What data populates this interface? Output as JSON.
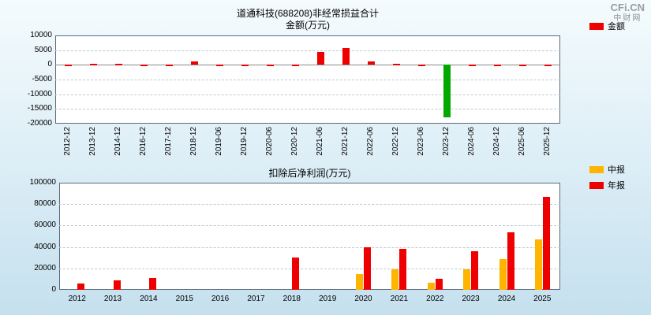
{
  "watermark": {
    "logo": "CFi.CN",
    "site": "中财网"
  },
  "chart_data": [
    {
      "type": "bar",
      "title": "道通科技(688208)非经常损益合计",
      "subtitle": "金额(万元)",
      "ylabel": "金额(万元)",
      "categories": [
        "2012-12",
        "2013-12",
        "2014-12",
        "2016-12",
        "2017-12",
        "2018-12",
        "2019-06",
        "2019-12",
        "2020-06",
        "2020-12",
        "2021-06",
        "2021-12",
        "2022-06",
        "2022-12",
        "2023-06",
        "2023-12",
        "2024-06",
        "2024-12",
        "2025-06",
        "2025-12"
      ],
      "series": [
        {
          "name": "金额",
          "values": [
            200,
            400,
            300,
            150,
            150,
            1100,
            100,
            150,
            100,
            200,
            4300,
            5800,
            1300,
            450,
            200,
            -18000,
            200,
            150,
            150,
            200
          ]
        }
      ],
      "positive_color": "#ee0000",
      "negative_color": "#00a800",
      "ylim": [
        -20000,
        10000
      ],
      "yticks": [
        10000,
        5000,
        0,
        -5000,
        -10000,
        -15000,
        -20000
      ],
      "grid": true,
      "legend": [
        {
          "label": "金额",
          "color": "#ee0000"
        }
      ],
      "legend_position": "right"
    },
    {
      "type": "bar",
      "title": "扣除后净利润(万元)",
      "categories": [
        "2012",
        "2013",
        "2014",
        "2015",
        "2016",
        "2017",
        "2018",
        "2019",
        "2020",
        "2021",
        "2022",
        "2023",
        "2024",
        "2025"
      ],
      "series": [
        {
          "name": "中报",
          "color": "#ffb400",
          "values": [
            0,
            0,
            0,
            0,
            0,
            0,
            0,
            0,
            15000,
            19000,
            7000,
            19000,
            29000,
            47000
          ]
        },
        {
          "name": "年报",
          "color": "#ee0000",
          "values": [
            6000,
            9000,
            11000,
            0,
            0,
            0,
            30000,
            0,
            40000,
            38000,
            10500,
            36000,
            54000,
            87000
          ]
        }
      ],
      "ylim": [
        0,
        100000
      ],
      "yticks": [
        0,
        20000,
        40000,
        60000,
        80000,
        100000
      ],
      "grid": true,
      "legend": [
        {
          "label": "中报",
          "color": "#ffb400"
        },
        {
          "label": "年报",
          "color": "#ee0000"
        }
      ],
      "legend_position": "right"
    }
  ]
}
